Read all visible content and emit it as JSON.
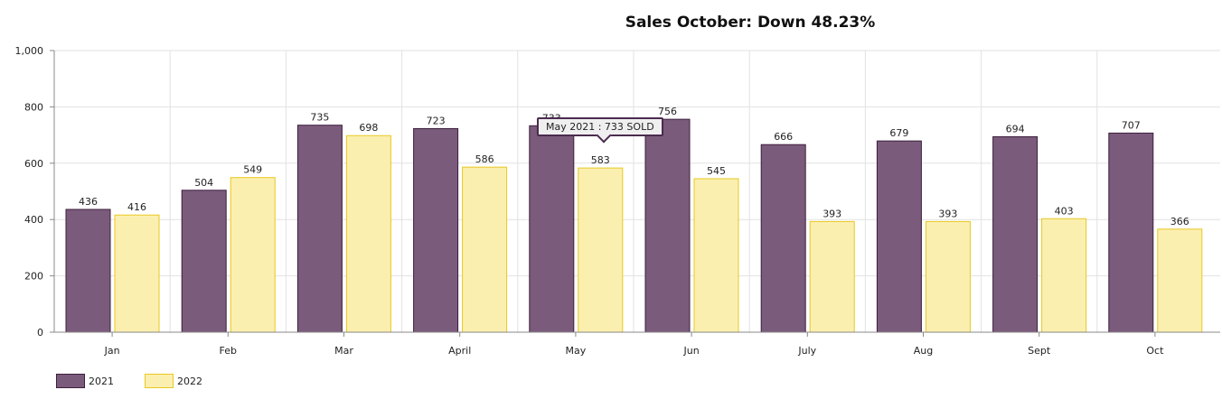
{
  "chart_data": {
    "type": "bar",
    "title": "Sales October: Down 48.23%",
    "categories": [
      "Jan",
      "Feb",
      "Mar",
      "April",
      "May",
      "Jun",
      "July",
      "Aug",
      "Sept",
      "Oct"
    ],
    "series": [
      {
        "name": "2021",
        "values": [
          436,
          504,
          735,
          723,
          733,
          756,
          666,
          679,
          694,
          707
        ],
        "color": "#7b5b7b",
        "stroke": "#3d1f3d"
      },
      {
        "name": "2022",
        "values": [
          416,
          549,
          698,
          586,
          583,
          545,
          393,
          393,
          403,
          366
        ],
        "color": "#fbefb0",
        "stroke": "#e8c820"
      }
    ],
    "ylim": [
      0,
      1000
    ],
    "yticks": [
      "0",
      "200",
      "400",
      "600",
      "800",
      "1,000"
    ],
    "xlabel": "",
    "ylabel": "",
    "grid": true,
    "legend": "bottom-left",
    "tooltip": {
      "text": "May 2021 : 733 SOLD",
      "category": "May",
      "series": "2021"
    }
  }
}
